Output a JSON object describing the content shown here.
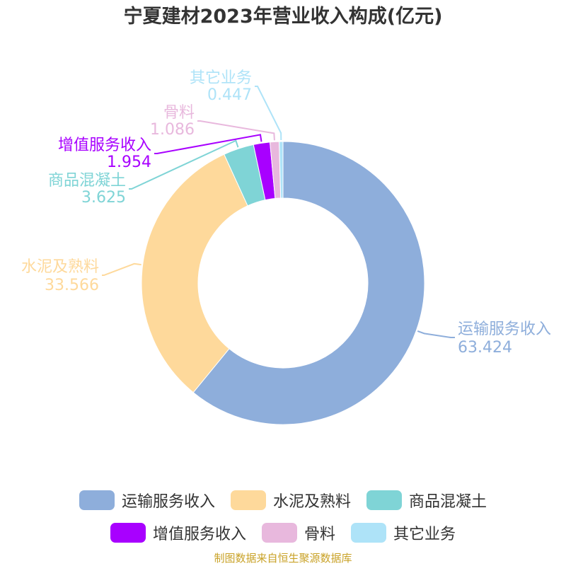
{
  "chart_data": {
    "type": "pie",
    "title": "宁夏建材2023年营业收入构成(亿元)",
    "donut": true,
    "legend_position": "bottom",
    "slices": [
      {
        "label": "运输服务收入",
        "value": 63.424,
        "value_text": "63.424",
        "color": "#8eaedb"
      },
      {
        "label": "水泥及熟料",
        "value": 33.566,
        "value_text": "33.566",
        "color": "#fed99b"
      },
      {
        "label": "商品混凝土",
        "value": 3.625,
        "value_text": "3.625",
        "color": "#7fd4d6"
      },
      {
        "label": "增值服务收入",
        "value": 1.954,
        "value_text": "1.954",
        "color": "#a800ff"
      },
      {
        "label": "骨料",
        "value": 1.086,
        "value_text": "1.086",
        "color": "#e8b8dd"
      },
      {
        "label": "其它业务",
        "value": 0.447,
        "value_text": "0.447",
        "color": "#aee3f8"
      }
    ]
  },
  "source_note": "制图数据来自恒生聚源数据库"
}
